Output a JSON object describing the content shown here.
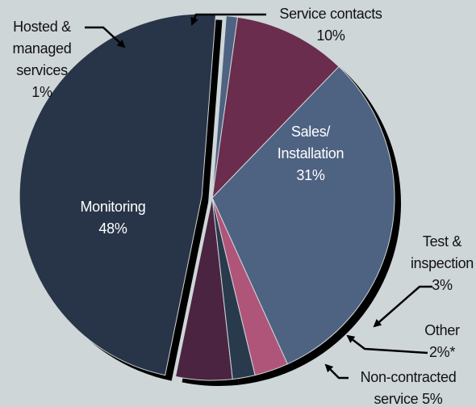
{
  "chart_data": {
    "type": "pie",
    "categories": [
      "Service contacts",
      "Sales/ Installation",
      "Test & inspection",
      "Other",
      "Non-contracted service",
      "Monitoring",
      "Hosted & managed services"
    ],
    "values": [
      10,
      31,
      3,
      2,
      5,
      48,
      1
    ],
    "value_labels": [
      "10%",
      "31%",
      "3%",
      "2%*",
      "5%",
      "48%",
      "1%"
    ],
    "colors": [
      "#6b2d4d",
      "#4e6282",
      "#b0557a",
      "#2a3a4d",
      "#4a2440",
      "#283548",
      "#4e6282"
    ]
  }
}
